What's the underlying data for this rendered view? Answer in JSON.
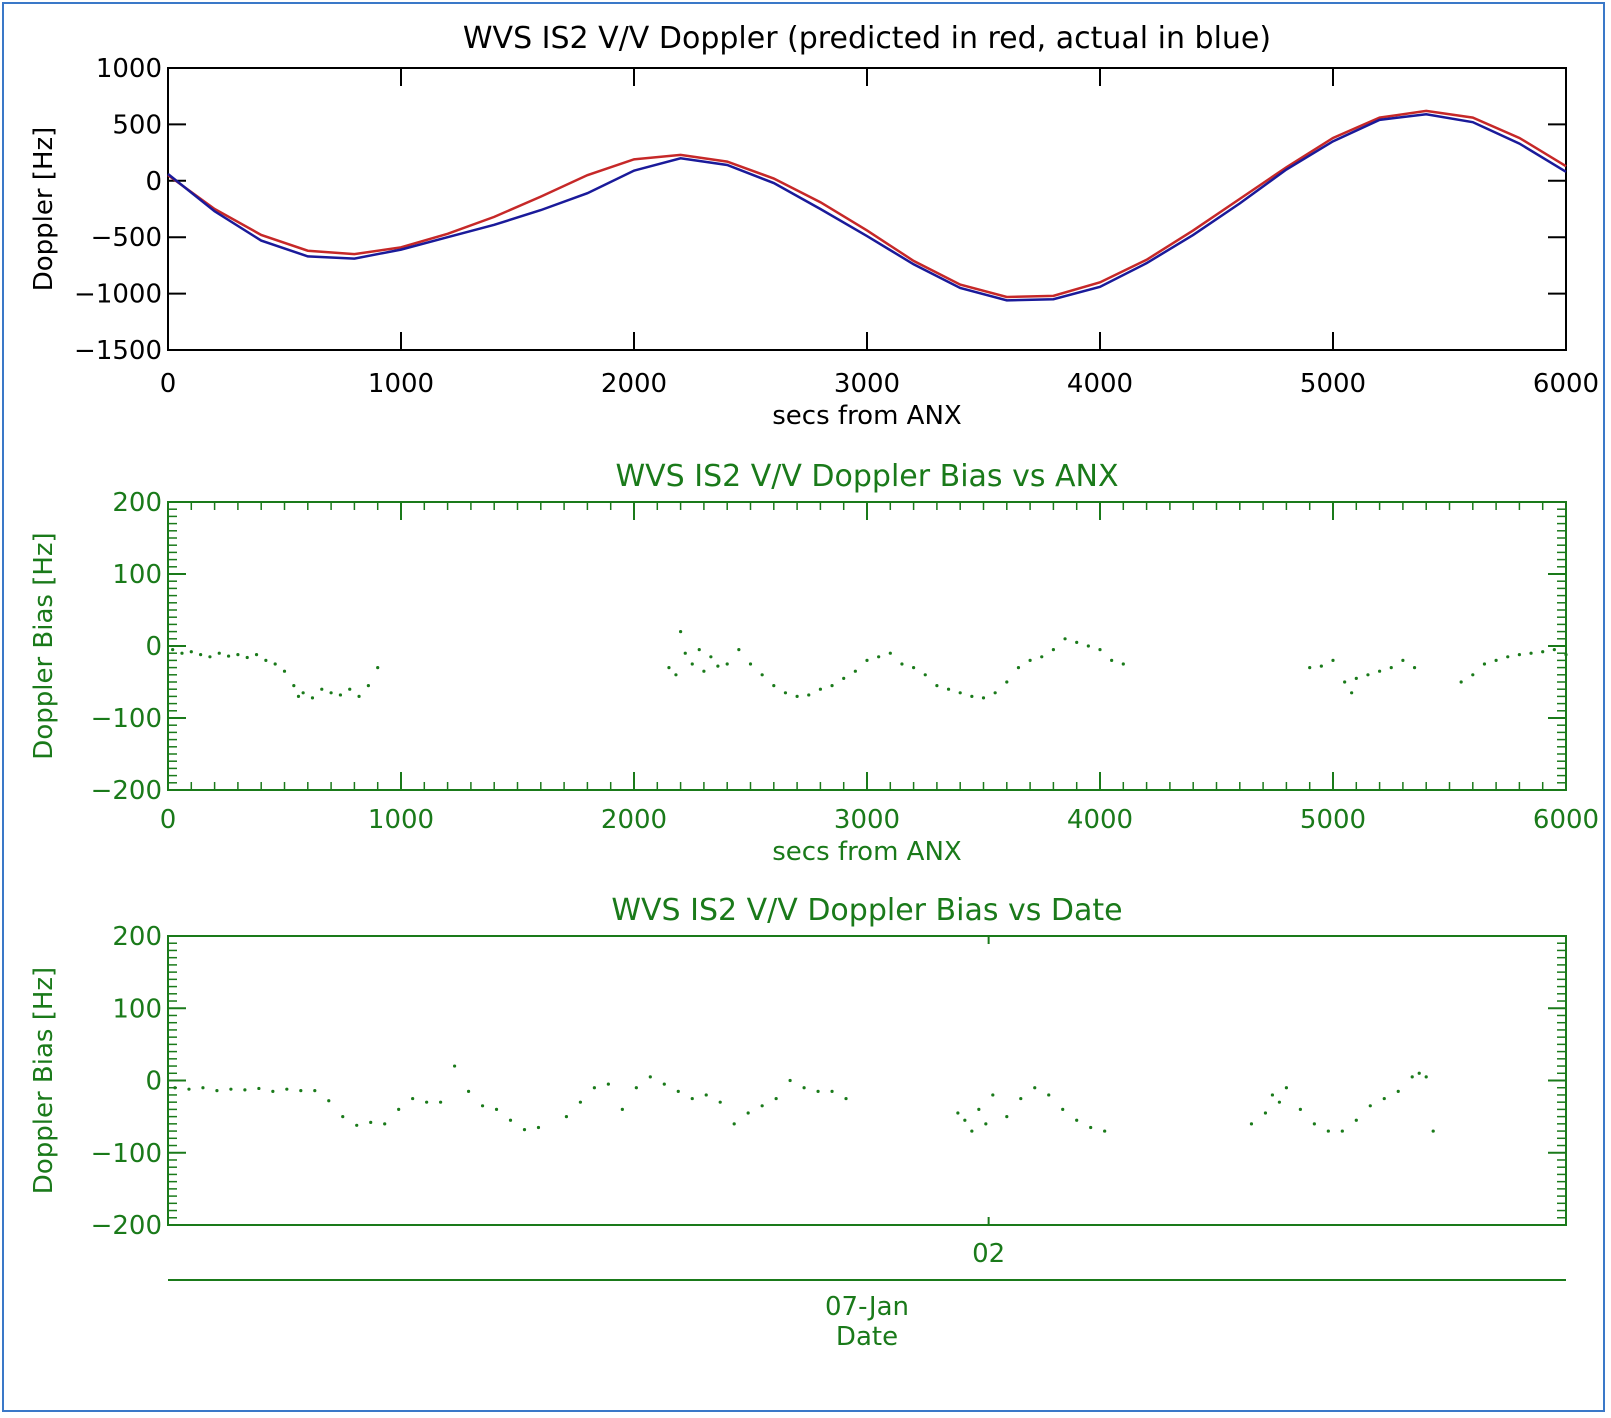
{
  "colors": {
    "frame": "#3a78c8",
    "black": "#000000",
    "green": "#1a7a1a",
    "predicted": "#c62828",
    "actual": "#1a1a9a"
  },
  "chart_data": [
    {
      "type": "line",
      "title": "WVS IS2 V/V Doppler (predicted in red, actual in blue)",
      "xlabel": "secs from ANX",
      "ylabel": "Doppler [Hz]",
      "xlim": [
        0,
        6000
      ],
      "ylim": [
        -1500,
        1000
      ],
      "x_ticks": [
        0,
        1000,
        2000,
        3000,
        4000,
        5000,
        6000
      ],
      "y_ticks": [
        1000,
        500,
        0,
        -500,
        -1000,
        -1500
      ],
      "grid": false,
      "series": [
        {
          "color": "#c62828",
          "x": [
            0,
            200,
            400,
            600,
            800,
            1000,
            1200,
            1400,
            1600,
            1800,
            2000,
            2200,
            2400,
            2600,
            2800,
            3000,
            3200,
            3400,
            3600,
            3800,
            4000,
            4200,
            4400,
            4600,
            4800,
            5000,
            5200,
            5400,
            5600,
            5800,
            6000
          ],
          "y": [
            50,
            -250,
            -480,
            -620,
            -650,
            -590,
            -470,
            -320,
            -140,
            50,
            190,
            230,
            170,
            20,
            -190,
            -440,
            -710,
            -920,
            -1030,
            -1020,
            -900,
            -700,
            -440,
            -160,
            120,
            380,
            560,
            620,
            560,
            380,
            130
          ]
        },
        {
          "color": "#1a1a9a",
          "x": [
            0,
            200,
            400,
            600,
            800,
            1000,
            1200,
            1400,
            1600,
            1800,
            2000,
            2200,
            2400,
            2600,
            2800,
            3000,
            3200,
            3400,
            3600,
            3800,
            4000,
            4200,
            4400,
            4600,
            4800,
            5000,
            5200,
            5400,
            5600,
            5800,
            6000
          ],
          "y": [
            60,
            -270,
            -530,
            -670,
            -690,
            -610,
            -500,
            -390,
            -260,
            -110,
            90,
            200,
            140,
            -20,
            -250,
            -490,
            -740,
            -950,
            -1060,
            -1050,
            -940,
            -730,
            -480,
            -200,
            100,
            350,
            540,
            590,
            520,
            330,
            80
          ]
        }
      ]
    },
    {
      "type": "scatter",
      "title": "WVS IS2 V/V Doppler Bias vs ANX",
      "xlabel": "secs from ANX",
      "ylabel": "Doppler Bias [Hz]",
      "xlim": [
        0,
        6000
      ],
      "ylim": [
        -200,
        200
      ],
      "x_ticks": [
        0,
        1000,
        2000,
        3000,
        4000,
        5000,
        6000
      ],
      "y_ticks": [
        200,
        100,
        0,
        -100,
        -200
      ],
      "grid": false,
      "series": [
        {
          "color": "#1a7a1a",
          "x": [
            20,
            60,
            100,
            140,
            180,
            220,
            260,
            300,
            340,
            380,
            420,
            460,
            500,
            540,
            560,
            580,
            620,
            660,
            700,
            740,
            780,
            820,
            860,
            900,
            2150,
            2180,
            2200,
            2220,
            2250,
            2280,
            2300,
            2330,
            2360,
            2400,
            2450,
            2500,
            2550,
            2600,
            2650,
            2700,
            2750,
            2800,
            2850,
            2900,
            2950,
            3000,
            3050,
            3100,
            3150,
            3200,
            3250,
            3300,
            3350,
            3400,
            3450,
            3500,
            3550,
            3600,
            3650,
            3700,
            3750,
            3800,
            3850,
            3900,
            3950,
            4000,
            4050,
            4100,
            4900,
            4950,
            5000,
            5050,
            5080,
            5100,
            5150,
            5200,
            5250,
            5300,
            5350,
            5550,
            5600,
            5650,
            5700,
            5750,
            5800,
            5850,
            5900,
            5950,
            6000
          ],
          "y": [
            -5,
            -10,
            -8,
            -12,
            -15,
            -10,
            -14,
            -12,
            -16,
            -12,
            -20,
            -25,
            -35,
            -55,
            -70,
            -65,
            -72,
            -60,
            -65,
            -68,
            -60,
            -70,
            -55,
            -30,
            -30,
            -40,
            20,
            -10,
            -25,
            -5,
            -35,
            -15,
            -28,
            -25,
            -5,
            -25,
            -40,
            -55,
            -65,
            -70,
            -68,
            -60,
            -55,
            -45,
            -35,
            -20,
            -15,
            -10,
            -25,
            -30,
            -40,
            -55,
            -60,
            -65,
            -70,
            -72,
            -65,
            -50,
            -30,
            -20,
            -15,
            -5,
            10,
            5,
            0,
            -5,
            -20,
            -25,
            -30,
            -28,
            -20,
            -50,
            -65,
            -45,
            -40,
            -35,
            -30,
            -20,
            -30,
            -50,
            -40,
            -25,
            -20,
            -15,
            -12,
            -10,
            -8,
            -5,
            -12
          ]
        }
      ]
    },
    {
      "type": "scatter",
      "title": "WVS IS2 V/V Doppler Bias vs Date",
      "xlabel": "Date",
      "ylabel": "Doppler Bias [Hz]",
      "xlim": [
        0,
        100
      ],
      "ylim": [
        -200,
        200
      ],
      "x_ticks": [
        {
          "value": 58.7,
          "label": "02"
        }
      ],
      "x_sublabel": "07-Jan",
      "y_ticks": [
        200,
        100,
        0,
        -100,
        -200
      ],
      "grid": false,
      "series": [
        {
          "color": "#1a7a1a",
          "x": [
            0.5,
            1.5,
            2.5,
            3.5,
            4.5,
            5.5,
            6.5,
            7.5,
            8.5,
            9.5,
            10.5,
            11.5,
            12.5,
            13.5,
            14.5,
            15.5,
            16.5,
            17.5,
            18.5,
            19.5,
            20.5,
            21.5,
            22.5,
            23.5,
            24.5,
            25.5,
            26.5,
            28.5,
            29.5,
            30.5,
            31.5,
            32.5,
            33.5,
            34.5,
            35.5,
            36.5,
            37.5,
            38.5,
            39.5,
            40.5,
            41.5,
            42.5,
            43.5,
            44.5,
            45.5,
            46.5,
            47.5,
            48.5,
            56.5,
            57.0,
            57.5,
            58.0,
            58.5,
            59.0,
            60.0,
            61.0,
            62.0,
            63.0,
            64.0,
            65.0,
            66.0,
            67.0,
            77.5,
            78.5,
            79.0,
            79.5,
            80.0,
            81.0,
            82.0,
            83.0,
            84.0,
            85.0,
            86.0,
            87.0,
            88.0,
            89.0,
            89.5,
            90.0,
            90.5
          ],
          "y": [
            -10,
            -12,
            -10,
            -14,
            -12,
            -13,
            -11,
            -15,
            -12,
            -14,
            -14,
            -28,
            -50,
            -62,
            -58,
            -60,
            -40,
            -25,
            -30,
            -30,
            20,
            -15,
            -35,
            -40,
            -55,
            -68,
            -65,
            -50,
            -30,
            -10,
            -5,
            -40,
            -10,
            5,
            -5,
            -15,
            -25,
            -20,
            -30,
            -60,
            -45,
            -35,
            -25,
            0,
            -10,
            -15,
            -15,
            -25,
            -45,
            -55,
            -70,
            -40,
            -60,
            -20,
            -50,
            -25,
            -10,
            -20,
            -40,
            -55,
            -65,
            -70,
            -60,
            -45,
            -20,
            -30,
            -10,
            -40,
            -60,
            -70,
            -70,
            -55,
            -35,
            -25,
            -15,
            5,
            10,
            5,
            -70
          ]
        }
      ]
    }
  ]
}
